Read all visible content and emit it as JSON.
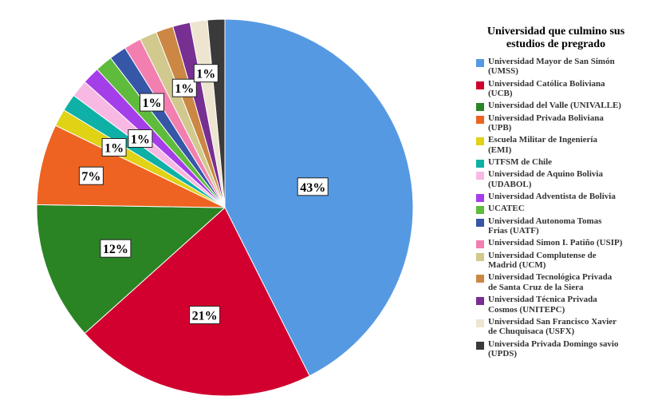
{
  "chart_data": {
    "type": "pie",
    "title": "",
    "legend": {
      "title": "Universidad que culmino sus estudios de pregrado",
      "placement": "right",
      "entries": [
        "Universidad Mayor de San Simón\n(UMSS)",
        "Universidad Católica Boliviana\n(UCB)",
        "Universidad del Valle (UNIVALLE)",
        "Universidad Privada Boliviana\n(UPB)",
        "Escuela Militar de Ingeniería\n(EMI)",
        "UTFSM de Chile",
        "Universidad de Aquino Bolivia\n(UDABOL)",
        "Universidad Adventista de Bolivia",
        "UCATEC",
        "Universidad Autonoma Tomas\nFrias (UATF)",
        "Universidad Simon I. Patiño (USIP)",
        "Universidad Complutense de\nMadrid (UCM)",
        "Universidad Tecnológica Privada\nde Santa Cruz de la Siera",
        "Universidad Técnica Privada\nCosmos (UNITEPC)",
        "Universidad San Francisco Xavier\nde Chuquisaca (USFX)",
        "Universida Privada Domingo savio\n(UPDS)"
      ]
    },
    "values": [
      43,
      21,
      12,
      7,
      1.5,
      1.5,
      1.5,
      1.5,
      1.5,
      1.5,
      1.5,
      1.5,
      1.5,
      1.5,
      1.5,
      1.5
    ],
    "colors": [
      "#5599e3",
      "#d1002e",
      "#2a8424",
      "#ee6322",
      "#e0d215",
      "#0fb0a5",
      "#f7b9e3",
      "#a43ee8",
      "#5fbb3b",
      "#3656a8",
      "#f27fb0",
      "#d1c98e",
      "#cb8743",
      "#772f92",
      "#ede5d0",
      "#3a3a3a"
    ],
    "data_labels": [
      "43%",
      "21%",
      "12%",
      "7%",
      "1%",
      "",
      "1%",
      "",
      "",
      "1%",
      "",
      "",
      "1%",
      "",
      "1%",
      ""
    ]
  }
}
